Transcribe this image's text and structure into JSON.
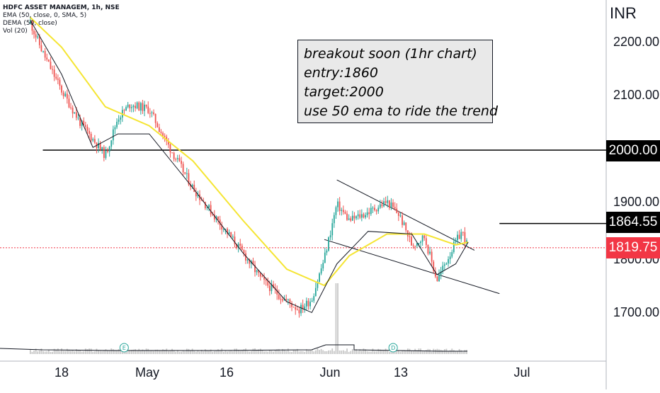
{
  "legend": {
    "symbol": "HDFC ASSET MANAGEM, 1h, NSE",
    "ema": "EMA (50, close, 0, SMA, 5)",
    "dema": "DEMA (50, close)",
    "vol": "Vol (20)"
  },
  "note": {
    "line1": "breakout soon (1hr chart)",
    "line2": "entry:1860",
    "line3": "target:2000",
    "line4": "use 50 ema to ride the trend"
  },
  "currency": "INR",
  "price_tags": {
    "target": "2000.00",
    "entry": "1864.55",
    "last": "1819.75"
  },
  "markers": {
    "earnings": "E",
    "dividend": "D"
  },
  "colors": {
    "up": "#26a69a",
    "down": "#ef5350",
    "ema": "#f5e533",
    "dema": "#131722",
    "last_price": "#f23645",
    "volume": "#c8c8c8"
  },
  "chart_data": {
    "type": "candlestick",
    "title": "HDFC ASSET MANAGEM, 1h, NSE",
    "y_axis": {
      "label": "INR",
      "ticks": [
        "2200.00",
        "2100.00",
        "2000.00",
        "1900.00",
        "1800.00",
        "1700.00"
      ],
      "range": [
        1630,
        2260
      ]
    },
    "x_axis": {
      "ticks": [
        "18",
        "May",
        "16",
        "Jun",
        "13",
        "Jul"
      ]
    },
    "price_path": [
      [
        "Apr 13",
        2235
      ],
      [
        "Apr 15",
        2180
      ],
      [
        "Apr 18",
        2110
      ],
      [
        "Apr 21",
        2050
      ],
      [
        "Apr 25",
        1990
      ],
      [
        "Apr 27",
        2060
      ],
      [
        "Apr 29",
        2085
      ],
      [
        "May 2",
        2075
      ],
      [
        "May 5",
        2010
      ],
      [
        "May 9",
        1930
      ],
      [
        "May 13",
        1870
      ],
      [
        "May 17",
        1810
      ],
      [
        "May 20",
        1760
      ],
      [
        "May 23",
        1730
      ],
      [
        "May 26",
        1705
      ],
      [
        "May 28",
        1725
      ],
      [
        "May 30",
        1800
      ],
      [
        "Jun 1",
        1900
      ],
      [
        "Jun 3",
        1870
      ],
      [
        "Jun 6",
        1885
      ],
      [
        "Jun 9",
        1905
      ],
      [
        "Jun 11",
        1880
      ],
      [
        "Jun 13",
        1825
      ],
      [
        "Jun 15",
        1840
      ],
      [
        "Jun 17",
        1760
      ],
      [
        "Jun 20",
        1830
      ],
      [
        "Jun 21",
        1850
      ],
      [
        "Jun 22",
        1820
      ]
    ],
    "series": [
      {
        "name": "EMA (50, close, 0, SMA, 5)",
        "color": "#f5e533",
        "points": [
          [
            "Apr 13",
            2245
          ],
          [
            "Apr 18",
            2190
          ],
          [
            "Apr 25",
            2080
          ],
          [
            "May 2",
            2045
          ],
          [
            "May 9",
            1980
          ],
          [
            "May 17",
            1870
          ],
          [
            "May 24",
            1780
          ],
          [
            "May 30",
            1750
          ],
          [
            "Jun 3",
            1805
          ],
          [
            "Jun 9",
            1845
          ],
          [
            "Jun 15",
            1845
          ],
          [
            "Jun 20",
            1825
          ],
          [
            "Jun 22",
            1830
          ]
        ]
      },
      {
        "name": "DEMA (50, close)",
        "color": "#131722",
        "points": [
          [
            "Apr 13",
            2240
          ],
          [
            "Apr 18",
            2140
          ],
          [
            "Apr 23",
            2005
          ],
          [
            "Apr 27",
            2030
          ],
          [
            "May 2",
            2030
          ],
          [
            "May 9",
            1930
          ],
          [
            "May 17",
            1810
          ],
          [
            "May 24",
            1720
          ],
          [
            "May 28",
            1700
          ],
          [
            "Jun 1",
            1790
          ],
          [
            "Jun 6",
            1850
          ],
          [
            "Jun 13",
            1845
          ],
          [
            "Jun 17",
            1770
          ],
          [
            "Jun 20",
            1790
          ],
          [
            "Jun 22",
            1830
          ]
        ]
      }
    ],
    "horizontal_lines": [
      {
        "value": 2000,
        "label": "2000.00",
        "from": "Apr 15",
        "to": "right"
      },
      {
        "value": 1864.55,
        "label": "1864.55",
        "from": "Jun 27",
        "to": "right"
      },
      {
        "value": 1819.75,
        "label": "1819.75",
        "style": "dotted",
        "color": "#f23645"
      }
    ],
    "trendlines": [
      {
        "name": "channel-top",
        "from": [
          "Jun 1",
          1945
        ],
        "to": [
          "Jun 23",
          1815
        ]
      },
      {
        "name": "channel-bottom",
        "from": [
          "May 30",
          1835
        ],
        "to": [
          "Jun 27",
          1735
        ]
      }
    ],
    "events": [
      {
        "date": "Apr 28",
        "label": "E"
      },
      {
        "date": "Jun 10",
        "label": "D"
      }
    ],
    "volume_spike_date": "Jun 1",
    "grid": false
  }
}
